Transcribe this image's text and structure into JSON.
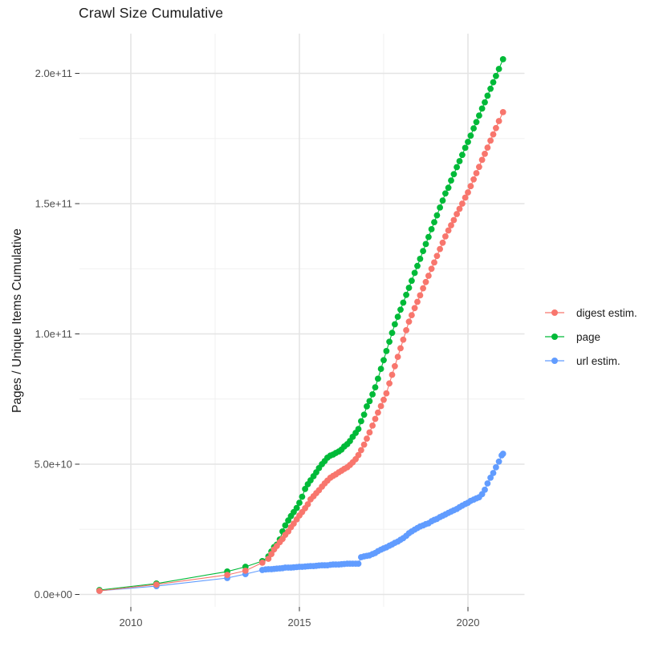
{
  "chart_data": {
    "type": "scatter",
    "title": "Crawl Size Cumulative",
    "xlabel": "",
    "ylabel": "Pages / Unique Items Cumulative",
    "grid": true,
    "legend_position": "right-center",
    "value_scale": "values in billions (1e9); tick 50 = 5.0e+10",
    "x_range_years": [
      2008.5,
      2021.7
    ],
    "y_range_billions": [
      0,
      212
    ],
    "x_ticks": [
      {
        "year": 2010,
        "label": "2010"
      },
      {
        "year": 2015,
        "label": "2015"
      },
      {
        "year": 2020,
        "label": "2020"
      }
    ],
    "x_minor_years": [
      2012.5,
      2017.5
    ],
    "y_ticks": [
      {
        "value": 0,
        "label": "0.0e+00"
      },
      {
        "value": 50,
        "label": "5.0e+10"
      },
      {
        "value": 100,
        "label": "1.0e+11"
      },
      {
        "value": 150,
        "label": "1.5e+11"
      },
      {
        "value": 200,
        "label": "2.0e+11"
      }
    ],
    "y_minor_values": [
      25,
      75,
      125,
      175
    ],
    "series": [
      {
        "name": "digest estim.",
        "color": "#F8766D",
        "points": [
          [
            2009.07,
            1.4
          ],
          [
            2010.76,
            3.8
          ],
          [
            2012.86,
            7.5
          ],
          [
            2013.4,
            9.1
          ],
          [
            2013.9,
            12.2
          ],
          [
            2014.08,
            13.7
          ],
          [
            2014.17,
            15.5
          ],
          [
            2014.25,
            17.3
          ],
          [
            2014.33,
            18.6
          ],
          [
            2014.42,
            20.1
          ],
          [
            2014.5,
            21.3
          ],
          [
            2014.58,
            22.9
          ],
          [
            2014.67,
            24.2
          ],
          [
            2014.75,
            25.8
          ],
          [
            2014.83,
            27.2
          ],
          [
            2014.92,
            28.8
          ],
          [
            2015,
            30.3
          ],
          [
            2015.08,
            31.6
          ],
          [
            2015.17,
            33.1
          ],
          [
            2015.25,
            34.6
          ],
          [
            2015.33,
            36.5
          ],
          [
            2015.42,
            37.7
          ],
          [
            2015.5,
            38.9
          ],
          [
            2015.58,
            40
          ],
          [
            2015.67,
            41.4
          ],
          [
            2015.75,
            42.6
          ],
          [
            2015.83,
            43.7
          ],
          [
            2015.92,
            44.8
          ],
          [
            2016,
            45.5
          ],
          [
            2016.08,
            46.1
          ],
          [
            2016.17,
            46.9
          ],
          [
            2016.25,
            47.5
          ],
          [
            2016.33,
            48.2
          ],
          [
            2016.42,
            48.8
          ],
          [
            2016.5,
            49.7
          ],
          [
            2016.58,
            50.7
          ],
          [
            2016.67,
            51.9
          ],
          [
            2016.75,
            53.5
          ],
          [
            2016.83,
            55.4
          ],
          [
            2016.92,
            57.5
          ],
          [
            2017,
            59.8
          ],
          [
            2017.08,
            62.2
          ],
          [
            2017.17,
            64.8
          ],
          [
            2017.25,
            67.4
          ],
          [
            2017.33,
            69.8
          ],
          [
            2017.42,
            72.3
          ],
          [
            2017.5,
            74.7
          ],
          [
            2017.58,
            77.2
          ],
          [
            2017.67,
            81
          ],
          [
            2017.75,
            84.3
          ],
          [
            2017.83,
            87.6
          ],
          [
            2017.92,
            91.2
          ],
          [
            2018,
            94.5
          ],
          [
            2018.08,
            97.8
          ],
          [
            2018.17,
            101.4
          ],
          [
            2018.25,
            104.7
          ],
          [
            2018.33,
            107.2
          ],
          [
            2018.42,
            109.9
          ],
          [
            2018.5,
            112.3
          ],
          [
            2018.58,
            114.8
          ],
          [
            2018.67,
            117.5
          ],
          [
            2018.75,
            119.9
          ],
          [
            2018.83,
            122.3
          ],
          [
            2018.92,
            125
          ],
          [
            2019,
            127.4
          ],
          [
            2019.08,
            129.9
          ],
          [
            2019.17,
            132.6
          ],
          [
            2019.25,
            135
          ],
          [
            2019.33,
            137.4
          ],
          [
            2019.42,
            139.7
          ],
          [
            2019.5,
            141.7
          ],
          [
            2019.58,
            143.7
          ],
          [
            2019.67,
            146
          ],
          [
            2019.75,
            148
          ],
          [
            2019.83,
            150
          ],
          [
            2019.92,
            152.3
          ],
          [
            2020,
            154.3
          ],
          [
            2020.08,
            156.7
          ],
          [
            2020.17,
            159.3
          ],
          [
            2020.25,
            161.7
          ],
          [
            2020.33,
            164.1
          ],
          [
            2020.42,
            166.8
          ],
          [
            2020.5,
            169.1
          ],
          [
            2020.58,
            171.5
          ],
          [
            2020.67,
            174.2
          ],
          [
            2020.75,
            176.6
          ],
          [
            2020.83,
            179
          ],
          [
            2020.92,
            181.7
          ],
          [
            2021.04,
            185.1
          ]
        ]
      },
      {
        "name": "page",
        "color": "#00BA38",
        "points": [
          [
            2009.07,
            1.7
          ],
          [
            2010.76,
            4.2
          ],
          [
            2012.86,
            8.8
          ],
          [
            2013.4,
            10.6
          ],
          [
            2013.9,
            12.8
          ],
          [
            2014.08,
            14.6
          ],
          [
            2014.17,
            16.5
          ],
          [
            2014.25,
            18.2
          ],
          [
            2014.33,
            19.1
          ],
          [
            2014.42,
            21.1
          ],
          [
            2014.5,
            24.2
          ],
          [
            2014.58,
            26.5
          ],
          [
            2014.67,
            28.4
          ],
          [
            2014.75,
            30.1
          ],
          [
            2014.83,
            31.6
          ],
          [
            2014.92,
            33.2
          ],
          [
            2015,
            35.2
          ],
          [
            2015.08,
            37.5
          ],
          [
            2015.17,
            40.5
          ],
          [
            2015.25,
            42.3
          ],
          [
            2015.33,
            43.8
          ],
          [
            2015.42,
            45.4
          ],
          [
            2015.5,
            46.9
          ],
          [
            2015.58,
            48.5
          ],
          [
            2015.67,
            50
          ],
          [
            2015.75,
            51.2
          ],
          [
            2015.83,
            52.5
          ],
          [
            2015.92,
            53.3
          ],
          [
            2016,
            53.7
          ],
          [
            2016.08,
            54.3
          ],
          [
            2016.17,
            54.9
          ],
          [
            2016.25,
            55.6
          ],
          [
            2016.33,
            56.8
          ],
          [
            2016.42,
            57.7
          ],
          [
            2016.5,
            58.9
          ],
          [
            2016.58,
            60.5
          ],
          [
            2016.67,
            62
          ],
          [
            2016.75,
            63.5
          ],
          [
            2016.83,
            66.5
          ],
          [
            2016.92,
            69
          ],
          [
            2017,
            72.2
          ],
          [
            2017.08,
            74.2
          ],
          [
            2017.17,
            76.8
          ],
          [
            2017.25,
            79.5
          ],
          [
            2017.33,
            82.8
          ],
          [
            2017.42,
            86.6
          ],
          [
            2017.5,
            89.9
          ],
          [
            2017.58,
            93.4
          ],
          [
            2017.67,
            97
          ],
          [
            2017.75,
            100.4
          ],
          [
            2017.83,
            103.7
          ],
          [
            2017.92,
            106.6
          ],
          [
            2018,
            109.3
          ],
          [
            2018.08,
            112
          ],
          [
            2018.17,
            115
          ],
          [
            2018.25,
            117.7
          ],
          [
            2018.33,
            120.4
          ],
          [
            2018.42,
            123.4
          ],
          [
            2018.5,
            126.1
          ],
          [
            2018.58,
            128.8
          ],
          [
            2018.67,
            131.8
          ],
          [
            2018.75,
            134.5
          ],
          [
            2018.83,
            137.2
          ],
          [
            2018.92,
            140.2
          ],
          [
            2019,
            142.9
          ],
          [
            2019.08,
            145.5
          ],
          [
            2019.17,
            148.5
          ],
          [
            2019.25,
            151.2
          ],
          [
            2019.33,
            153.9
          ],
          [
            2019.42,
            156.1
          ],
          [
            2019.5,
            158.9
          ],
          [
            2019.58,
            161.3
          ],
          [
            2019.67,
            164
          ],
          [
            2019.75,
            166.3
          ],
          [
            2019.83,
            168.7
          ],
          [
            2019.92,
            171.4
          ],
          [
            2020,
            173.7
          ],
          [
            2020.08,
            176.1
          ],
          [
            2020.17,
            178.9
          ],
          [
            2020.25,
            181.3
          ],
          [
            2020.33,
            183.8
          ],
          [
            2020.42,
            186.5
          ],
          [
            2020.5,
            188.9
          ],
          [
            2020.58,
            191.4
          ],
          [
            2020.67,
            194.1
          ],
          [
            2020.75,
            196.6
          ],
          [
            2020.83,
            199
          ],
          [
            2020.92,
            201.7
          ],
          [
            2021.04,
            205.4
          ]
        ]
      },
      {
        "name": "url estim.",
        "color": "#619CFF",
        "points": [
          [
            2009.07,
            1.4
          ],
          [
            2010.76,
            3.2
          ],
          [
            2012.86,
            6.3
          ],
          [
            2013.4,
            7.8
          ],
          [
            2013.9,
            9.4
          ],
          [
            2014,
            9.6
          ],
          [
            2014.08,
            9.7
          ],
          [
            2014.17,
            9.7
          ],
          [
            2014.25,
            9.8
          ],
          [
            2014.33,
            9.9
          ],
          [
            2014.42,
            10
          ],
          [
            2014.5,
            10.1
          ],
          [
            2014.58,
            10.3
          ],
          [
            2014.67,
            10.3
          ],
          [
            2014.75,
            10.3
          ],
          [
            2014.83,
            10.4
          ],
          [
            2014.92,
            10.5
          ],
          [
            2015,
            10.6
          ],
          [
            2015.08,
            10.6
          ],
          [
            2015.17,
            10.7
          ],
          [
            2015.25,
            10.8
          ],
          [
            2015.33,
            10.9
          ],
          [
            2015.42,
            10.9
          ],
          [
            2015.5,
            11
          ],
          [
            2015.58,
            11.1
          ],
          [
            2015.67,
            11.2
          ],
          [
            2015.75,
            11.2
          ],
          [
            2015.83,
            11.2
          ],
          [
            2015.92,
            11.4
          ],
          [
            2016,
            11.5
          ],
          [
            2016.08,
            11.5
          ],
          [
            2016.17,
            11.5
          ],
          [
            2016.25,
            11.6
          ],
          [
            2016.33,
            11.7
          ],
          [
            2016.42,
            11.8
          ],
          [
            2016.5,
            11.8
          ],
          [
            2016.58,
            11.8
          ],
          [
            2016.67,
            11.8
          ],
          [
            2016.75,
            11.8
          ],
          [
            2016.83,
            14.3
          ],
          [
            2016.92,
            14.6
          ],
          [
            2017,
            14.8
          ],
          [
            2017.08,
            15
          ],
          [
            2017.17,
            15.5
          ],
          [
            2017.25,
            15.9
          ],
          [
            2017.33,
            16.6
          ],
          [
            2017.42,
            17.2
          ],
          [
            2017.5,
            17.7
          ],
          [
            2017.58,
            18.1
          ],
          [
            2017.67,
            18.7
          ],
          [
            2017.75,
            19.2
          ],
          [
            2017.83,
            19.8
          ],
          [
            2017.92,
            20.3
          ],
          [
            2018,
            21
          ],
          [
            2018.08,
            21.6
          ],
          [
            2018.17,
            22.5
          ],
          [
            2018.25,
            23.5
          ],
          [
            2018.33,
            24.2
          ],
          [
            2018.42,
            24.9
          ],
          [
            2018.5,
            25.5
          ],
          [
            2018.58,
            26.1
          ],
          [
            2018.67,
            26.5
          ],
          [
            2018.75,
            27
          ],
          [
            2018.83,
            27.3
          ],
          [
            2018.92,
            28.1
          ],
          [
            2019,
            28.6
          ],
          [
            2019.08,
            29
          ],
          [
            2019.17,
            29.7
          ],
          [
            2019.25,
            30.2
          ],
          [
            2019.33,
            30.7
          ],
          [
            2019.42,
            31.3
          ],
          [
            2019.5,
            31.8
          ],
          [
            2019.58,
            32.3
          ],
          [
            2019.67,
            32.8
          ],
          [
            2019.75,
            33.5
          ],
          [
            2019.83,
            34.1
          ],
          [
            2019.92,
            34.7
          ],
          [
            2020,
            35.2
          ],
          [
            2020.08,
            35.9
          ],
          [
            2020.17,
            36.4
          ],
          [
            2020.25,
            36.9
          ],
          [
            2020.33,
            37.3
          ],
          [
            2020.42,
            38.5
          ],
          [
            2020.5,
            40.2
          ],
          [
            2020.58,
            42.6
          ],
          [
            2020.67,
            44.8
          ],
          [
            2020.75,
            46.6
          ],
          [
            2020.83,
            48.8
          ],
          [
            2020.92,
            51
          ],
          [
            2021,
            53.4
          ],
          [
            2021.04,
            54
          ]
        ]
      }
    ],
    "style": {
      "background": "#FFFFFF",
      "grid_major_color": "#E4E4E4",
      "grid_minor_color": "#F0F0F0",
      "tick_color": "#333333",
      "tick_label_color": "#4D4D4D",
      "title_color": "#1A1A1A",
      "point_radius": 3.9
    }
  }
}
